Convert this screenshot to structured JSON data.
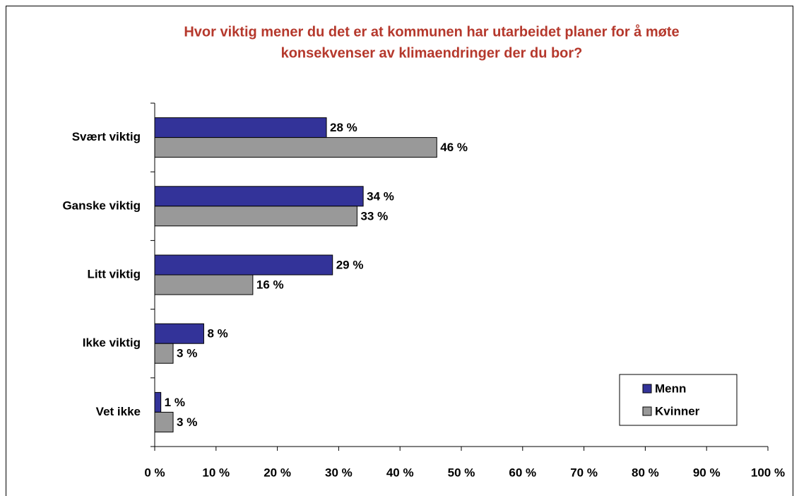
{
  "chart_data": {
    "type": "hbar",
    "title_lines": [
      "Hvor viktig mener du det er at kommunen har utarbeidet planer for å møte",
      "konsekvenser av klimaendringer der du bor?"
    ],
    "categories": [
      "Svært viktig",
      "Ganske viktig",
      "Litt viktig",
      "Ikke viktig",
      "Vet ikke"
    ],
    "series": [
      {
        "name": "Menn",
        "color": "#333399",
        "values": [
          28,
          34,
          29,
          8,
          1
        ],
        "value_labels": [
          "28 %",
          "34 %",
          "29 %",
          "8 %",
          "1 %"
        ]
      },
      {
        "name": "Kvinner",
        "color": "#999999",
        "values": [
          46,
          33,
          16,
          3,
          3
        ],
        "value_labels": [
          "46 %",
          "33 %",
          "16 %",
          "3 %",
          "3 %"
        ]
      }
    ],
    "xlim": [
      0,
      100
    ],
    "xticks": [
      {
        "value": 0,
        "label": "0 %"
      },
      {
        "value": 10,
        "label": "10 %"
      },
      {
        "value": 20,
        "label": "20 %"
      },
      {
        "value": 30,
        "label": "30 %"
      },
      {
        "value": 40,
        "label": "40 %"
      },
      {
        "value": 50,
        "label": "50 %"
      },
      {
        "value": 60,
        "label": "60 %"
      },
      {
        "value": 70,
        "label": "70 %"
      },
      {
        "value": 80,
        "label": "80 %"
      },
      {
        "value": 90,
        "label": "90 %"
      },
      {
        "value": 100,
        "label": "100 %"
      }
    ],
    "legend": "lower right"
  }
}
